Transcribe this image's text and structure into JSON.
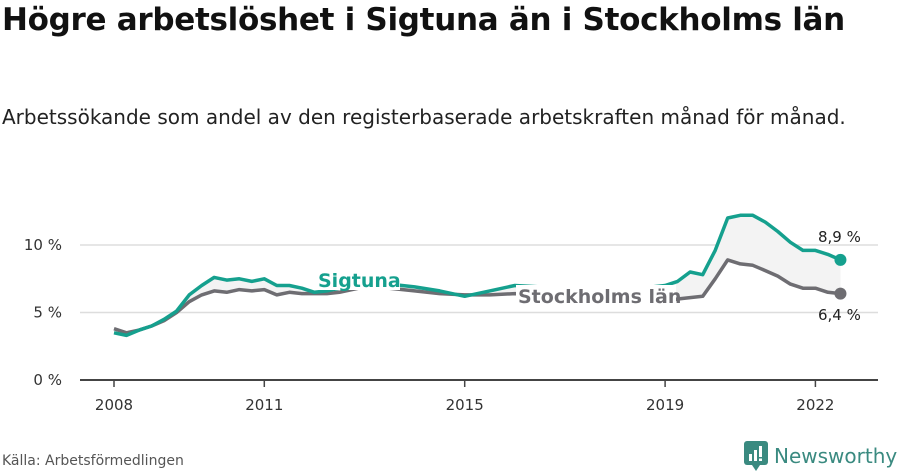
{
  "header": {
    "title": "Högre arbetslöshet i Sigtuna än i Stockholms län",
    "subtitle": "Arbetssökande som andel av den registerbaserade arbetskraften månad för månad."
  },
  "footer": {
    "source": "Källa: Arbetsförmedlingen",
    "brand": "Newsworthy",
    "brand_icon": "bar-chart-speech-bubble-icon"
  },
  "colors": {
    "sigtuna": "#15a08e",
    "stockholm": "#6e6d72",
    "fill": "#f3f3f3",
    "grid": "#dddddd",
    "axis": "#444444",
    "brand": "#3a8a80"
  },
  "chart_data": {
    "type": "line",
    "title": "Högre arbetslöshet i Sigtuna än i Stockholms län",
    "subtitle": "Arbetssökande som andel av den registerbaserade arbetskraften månad för månad.",
    "xlabel": "",
    "ylabel": "",
    "ylim": [
      0,
      10
    ],
    "yticks": [
      "0 %",
      "5 %",
      "10 %"
    ],
    "xticks": [
      "2008",
      "2011",
      "2015",
      "2019",
      "2022"
    ],
    "grid": true,
    "legend": "inline labels",
    "x": [
      2008.0,
      2008.25,
      2008.5,
      2008.75,
      2009.0,
      2009.25,
      2009.5,
      2009.75,
      2010.0,
      2010.25,
      2010.5,
      2010.75,
      2011.0,
      2011.25,
      2011.5,
      2011.75,
      2012.0,
      2012.25,
      2012.5,
      2013.0,
      2013.5,
      2014.0,
      2014.5,
      2015.0,
      2015.5,
      2016.0,
      2016.5,
      2017.0,
      2017.5,
      2018.0,
      2018.5,
      2019.0,
      2019.25,
      2019.5,
      2019.75,
      2020.0,
      2020.25,
      2020.5,
      2020.75,
      2021.0,
      2021.25,
      2021.5,
      2021.75,
      2022.0,
      2022.25,
      2022.5
    ],
    "series": [
      {
        "name": "Sigtuna",
        "label": "Sigtuna",
        "end_label": "8,9 %",
        "values": [
          3.5,
          3.3,
          3.7,
          4.0,
          4.5,
          5.1,
          6.3,
          7.0,
          7.6,
          7.4,
          7.5,
          7.3,
          7.5,
          7.0,
          7.0,
          6.8,
          6.5,
          6.6,
          6.8,
          7.2,
          7.1,
          6.9,
          6.6,
          6.2,
          6.6,
          7.0,
          6.9,
          6.9,
          6.9,
          6.9,
          6.8,
          7.0,
          7.3,
          8.0,
          7.8,
          9.6,
          12.0,
          12.2,
          12.2,
          11.7,
          11.0,
          10.2,
          9.6,
          9.6,
          9.3,
          8.9
        ]
      },
      {
        "name": "Stockholms län",
        "label": "Stockholms län",
        "end_label": "6,4 %",
        "values": [
          3.8,
          3.5,
          3.7,
          4.0,
          4.4,
          5.0,
          5.8,
          6.3,
          6.6,
          6.5,
          6.7,
          6.6,
          6.7,
          6.3,
          6.5,
          6.4,
          6.4,
          6.4,
          6.5,
          6.9,
          6.8,
          6.6,
          6.4,
          6.3,
          6.3,
          6.4,
          6.3,
          6.3,
          6.2,
          6.0,
          5.9,
          5.8,
          6.0,
          6.1,
          6.2,
          7.5,
          8.9,
          8.6,
          8.5,
          8.1,
          7.7,
          7.1,
          6.8,
          6.8,
          6.5,
          6.4
        ]
      }
    ]
  }
}
